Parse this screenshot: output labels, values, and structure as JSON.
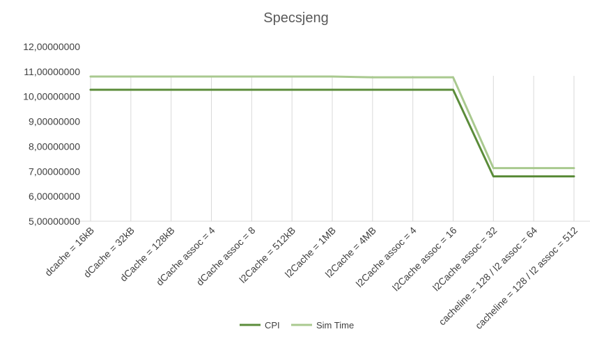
{
  "chart_data": {
    "type": "line",
    "title": "Specsjeng",
    "xlabel": "",
    "ylabel": "",
    "categories": [
      "dcache = 16kB",
      "dCache = 32kB",
      "dCache = 128kB",
      "dCache assoc = 4",
      "dCache assoc = 8",
      "l2Cache = 512kB",
      "l2Cache = 1MB",
      "l2Cache = 4MB",
      "l2Cache assoc = 4",
      "l2Cache assoc = 16",
      "l2Cache assoc = 32",
      "cacheline = 128 / l2 assoc = 64",
      "cacheline = 128 / l2 assoc = 512"
    ],
    "series": [
      {
        "name": "CPI",
        "color": "#5b8c3a",
        "values": [
          10.27,
          10.27,
          10.27,
          10.27,
          10.27,
          10.27,
          10.27,
          10.27,
          10.27,
          10.27,
          6.8,
          6.8,
          6.8
        ]
      },
      {
        "name": "Sim Time",
        "color": "#a9c98f",
        "values": [
          10.8,
          10.8,
          10.8,
          10.8,
          10.8,
          10.8,
          10.8,
          10.77,
          10.77,
          10.77,
          7.13,
          7.13,
          7.13
        ]
      }
    ],
    "ylim": [
      5,
      12
    ],
    "yticks": [
      5,
      6,
      7,
      8,
      9,
      10,
      11,
      12
    ],
    "ytick_labels": [
      "5,00000000",
      "6,00000000",
      "7,00000000",
      "8,00000000",
      "9,00000000",
      "10,00000000",
      "11,00000000",
      "12,00000000"
    ],
    "grid": {
      "vertical": true,
      "horizontal": false
    },
    "legend": "bottom"
  }
}
